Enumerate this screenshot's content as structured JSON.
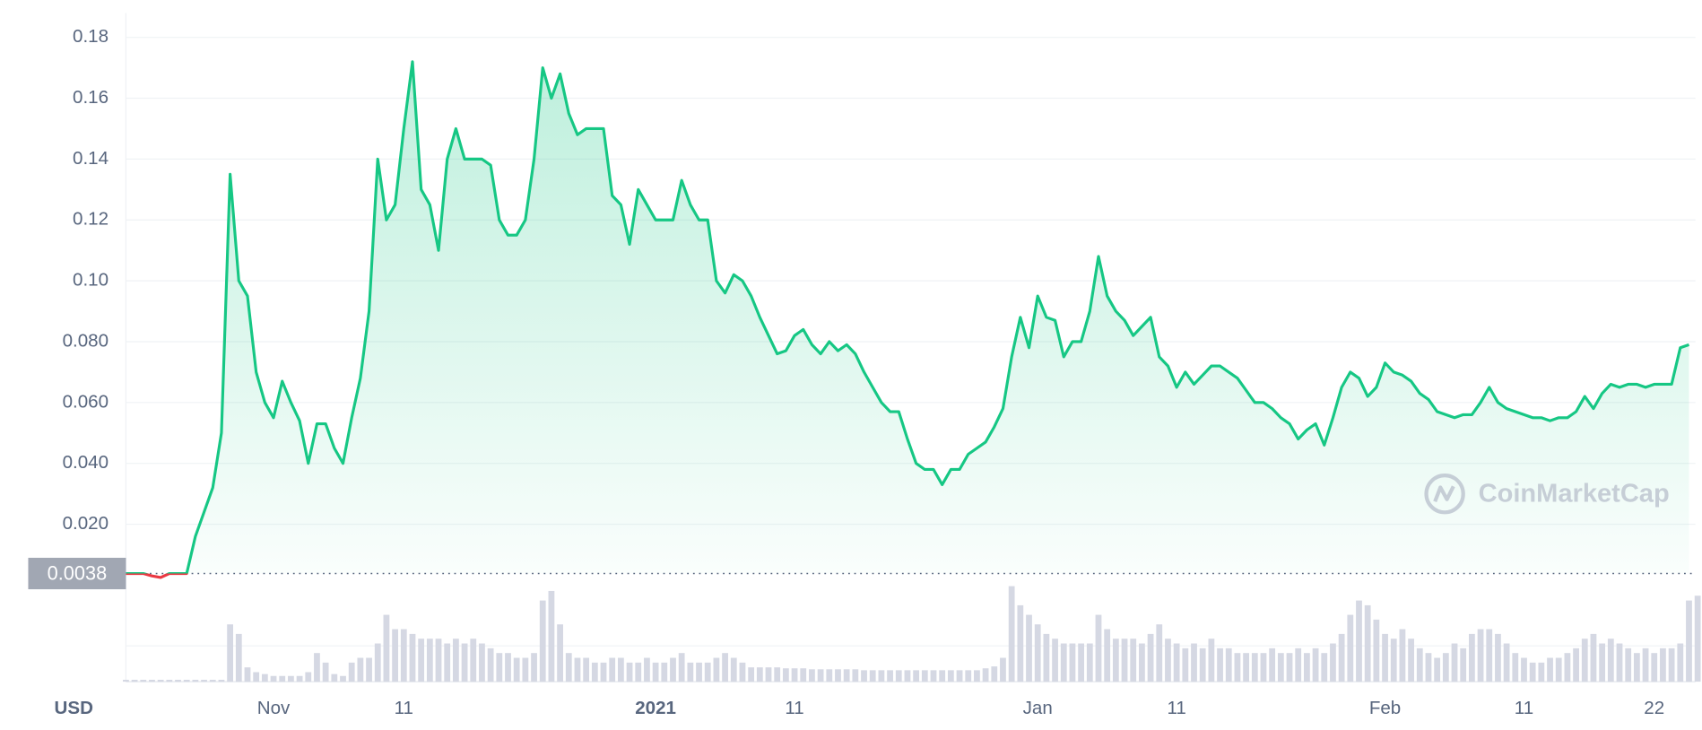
{
  "chart_data": {
    "type": "line",
    "currency": "USD",
    "watermark": "CoinMarketCap",
    "baseline": 0.0038,
    "ylim": [
      0,
      0.188
    ],
    "yticks": [
      {
        "value": 0.02,
        "label": "0.020"
      },
      {
        "value": 0.04,
        "label": "0.040"
      },
      {
        "value": 0.06,
        "label": "0.060"
      },
      {
        "value": 0.08,
        "label": "0.080"
      },
      {
        "value": 0.1,
        "label": "0.10"
      },
      0.12,
      0.14,
      0.16,
      0.18
    ],
    "grid": true,
    "categories": [
      null,
      null,
      null,
      null,
      null,
      null,
      null,
      null,
      null,
      null,
      null,
      null,
      null,
      null,
      null,
      null,
      null,
      "Nov",
      null,
      null,
      null,
      null,
      null,
      null,
      null,
      null,
      null,
      null,
      null,
      null,
      null,
      null,
      "11",
      null,
      null,
      null,
      null,
      null,
      null,
      null,
      null,
      null,
      null,
      null,
      null,
      null,
      null,
      null,
      null,
      null,
      null,
      null,
      null,
      null,
      null,
      null,
      null,
      null,
      null,
      null,
      null,
      "2021",
      null,
      null,
      null,
      null,
      null,
      null,
      null,
      null,
      null,
      null,
      null,
      null,
      null,
      null,
      null,
      "11",
      null,
      null,
      null,
      null,
      null,
      null,
      null,
      null,
      null,
      null,
      null,
      null,
      null,
      null,
      null,
      null,
      null,
      null,
      null,
      null,
      null,
      null,
      null,
      null,
      null,
      null,
      null,
      "Jan",
      null,
      null,
      null,
      null,
      null,
      null,
      null,
      null,
      null,
      null,
      null,
      null,
      null,
      null,
      null,
      "11",
      null,
      null,
      null,
      null,
      null,
      null,
      null,
      null,
      null,
      null,
      null,
      null,
      null,
      null,
      null,
      null,
      null,
      null,
      null,
      null,
      null,
      null,
      null,
      "Feb",
      null,
      null,
      null,
      null,
      null,
      null,
      null,
      null,
      null,
      null,
      null,
      null,
      null,
      null,
      null,
      "11",
      null,
      null,
      null,
      null,
      null,
      null,
      null,
      null,
      null,
      null,
      null,
      null,
      null,
      null,
      "22",
      null,
      null,
      null,
      null
    ],
    "series": [
      {
        "color": "#16c784",
        "negative_color": "#ea3943",
        "values": [
          0.0038,
          0.0038,
          0.0038,
          0.003,
          0.0025,
          0.0038,
          0.0038,
          0.0038,
          0.016,
          0.024,
          0.032,
          0.05,
          0.135,
          0.1,
          0.095,
          0.07,
          0.06,
          0.055,
          0.067,
          0.06,
          0.054,
          0.04,
          0.053,
          0.053,
          0.045,
          0.04,
          0.055,
          0.068,
          0.09,
          0.14,
          0.12,
          0.125,
          0.15,
          0.172,
          0.13,
          0.125,
          0.11,
          0.14,
          0.15,
          0.14,
          0.14,
          0.14,
          0.138,
          0.12,
          0.115,
          0.115,
          0.12,
          0.14,
          0.17,
          0.16,
          0.168,
          0.155,
          0.148,
          0.15,
          0.15,
          0.15,
          0.128,
          0.125,
          0.112,
          0.13,
          0.125,
          0.12,
          0.12,
          0.12,
          0.133,
          0.125,
          0.12,
          0.12,
          0.1,
          0.096,
          0.102,
          0.1,
          0.095,
          0.088,
          0.082,
          0.076,
          0.077,
          0.082,
          0.084,
          0.079,
          0.076,
          0.08,
          0.077,
          0.079,
          0.076,
          0.07,
          0.065,
          0.06,
          0.057,
          0.057,
          0.048,
          0.04,
          0.038,
          0.038,
          0.033,
          0.038,
          0.038,
          0.043,
          0.045,
          0.047,
          0.052,
          0.058,
          0.075,
          0.088,
          0.078,
          0.095,
          0.088,
          0.087,
          0.075,
          0.08,
          0.08,
          0.09,
          0.108,
          0.095,
          0.09,
          0.087,
          0.082,
          0.085,
          0.088,
          0.075,
          0.072,
          0.065,
          0.07,
          0.066,
          0.069,
          0.072,
          0.072,
          0.07,
          0.068,
          0.064,
          0.06,
          0.06,
          0.058,
          0.055,
          0.053,
          0.048,
          0.051,
          0.053,
          0.046,
          0.055,
          0.065,
          0.07,
          0.068,
          0.062,
          0.065,
          0.073,
          0.07,
          0.069,
          0.067,
          0.063,
          0.061,
          0.057,
          0.056,
          0.055,
          0.056,
          0.056,
          0.06,
          0.065,
          0.06,
          0.058,
          0.057,
          0.056,
          0.055,
          0.055,
          0.054,
          0.055,
          0.055,
          0.057,
          0.062,
          0.058,
          0.063,
          0.066,
          0.065,
          0.066,
          0.066,
          0.065,
          0.066,
          0.066,
          0.066,
          0.078,
          0.079
        ]
      }
    ],
    "volume": {
      "color": "#d5d8e3",
      "ylim": [
        0,
        100
      ],
      "values": [
        2,
        2,
        2,
        2,
        2,
        2,
        2,
        2,
        2,
        2,
        2,
        2,
        60,
        50,
        15,
        10,
        8,
        6,
        6,
        6,
        6,
        10,
        30,
        20,
        8,
        6,
        20,
        25,
        25,
        40,
        70,
        55,
        55,
        50,
        45,
        45,
        45,
        40,
        45,
        40,
        45,
        40,
        35,
        30,
        30,
        25,
        25,
        30,
        85,
        95,
        60,
        30,
        25,
        25,
        20,
        20,
        25,
        25,
        20,
        20,
        25,
        20,
        20,
        25,
        30,
        20,
        20,
        20,
        25,
        30,
        25,
        20,
        15,
        15,
        15,
        15,
        14,
        14,
        14,
        13,
        13,
        13,
        13,
        13,
        13,
        12,
        12,
        12,
        12,
        12,
        12,
        12,
        12,
        12,
        12,
        12,
        12,
        12,
        12,
        14,
        16,
        25,
        100,
        80,
        70,
        60,
        50,
        45,
        40,
        40,
        40,
        40,
        70,
        55,
        45,
        45,
        45,
        40,
        50,
        60,
        45,
        40,
        35,
        40,
        35,
        45,
        35,
        35,
        30,
        30,
        30,
        30,
        35,
        30,
        30,
        35,
        30,
        35,
        30,
        40,
        50,
        70,
        85,
        80,
        65,
        50,
        45,
        55,
        45,
        35,
        30,
        25,
        30,
        40,
        35,
        50,
        55,
        55,
        50,
        40,
        30,
        25,
        20,
        20,
        25,
        25,
        30,
        35,
        45,
        50,
        40,
        45,
        40,
        35,
        30,
        35,
        30,
        35,
        35,
        40,
        85,
        90
      ]
    }
  }
}
